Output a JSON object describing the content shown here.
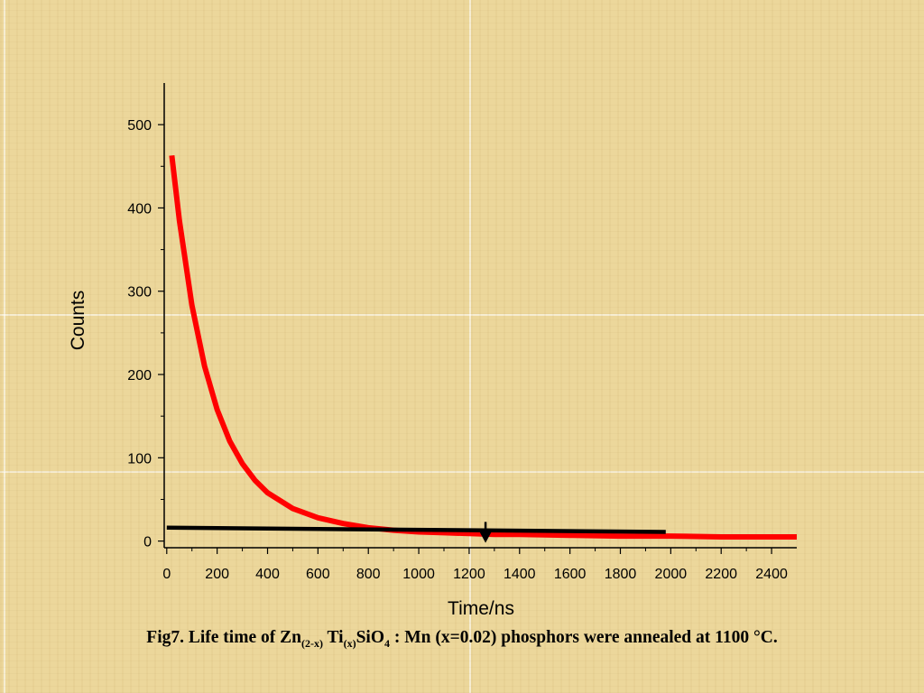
{
  "chart_data": {
    "type": "line",
    "xlabel": "Time/ns",
    "ylabel": "Counts",
    "xlim": [
      -10,
      2500
    ],
    "ylim": [
      -8,
      550
    ],
    "x_ticks": [
      0,
      200,
      400,
      600,
      800,
      1000,
      1200,
      1400,
      1600,
      1800,
      2000,
      2200,
      2400
    ],
    "y_ticks": [
      0,
      100,
      200,
      300,
      400,
      500
    ],
    "grid": false,
    "series": [
      {
        "color": "#ff0000",
        "x": [
          20,
          50,
          100,
          150,
          200,
          250,
          300,
          350,
          400,
          500,
          600,
          700,
          800,
          900,
          1000,
          1100,
          1200,
          1300,
          1400,
          1600,
          1800,
          2000,
          2200,
          2400,
          2500
        ],
        "y": [
          463,
          385,
          283,
          210,
          158,
          120,
          93,
          73,
          58,
          39,
          28,
          21,
          16,
          13,
          11,
          10,
          9,
          8,
          8,
          7,
          6,
          6,
          5,
          5,
          5
        ]
      },
      {
        "color": "#000000",
        "x": [
          0,
          1980
        ],
        "y": [
          16,
          11
        ]
      }
    ],
    "annotations": [
      {
        "type": "arrow-down",
        "x": 1265,
        "y_top": 23,
        "y_tip": 0,
        "color": "#000000"
      }
    ]
  },
  "caption": {
    "part1": "Fig7. Life time of Zn",
    "sub1": "(2-x)",
    "part2": " Ti",
    "sub2": "(x)",
    "part3": "SiO",
    "sub3": "4",
    "part4": " : Mn (x=0.02) phosphors were annealed at 1100 °C."
  }
}
